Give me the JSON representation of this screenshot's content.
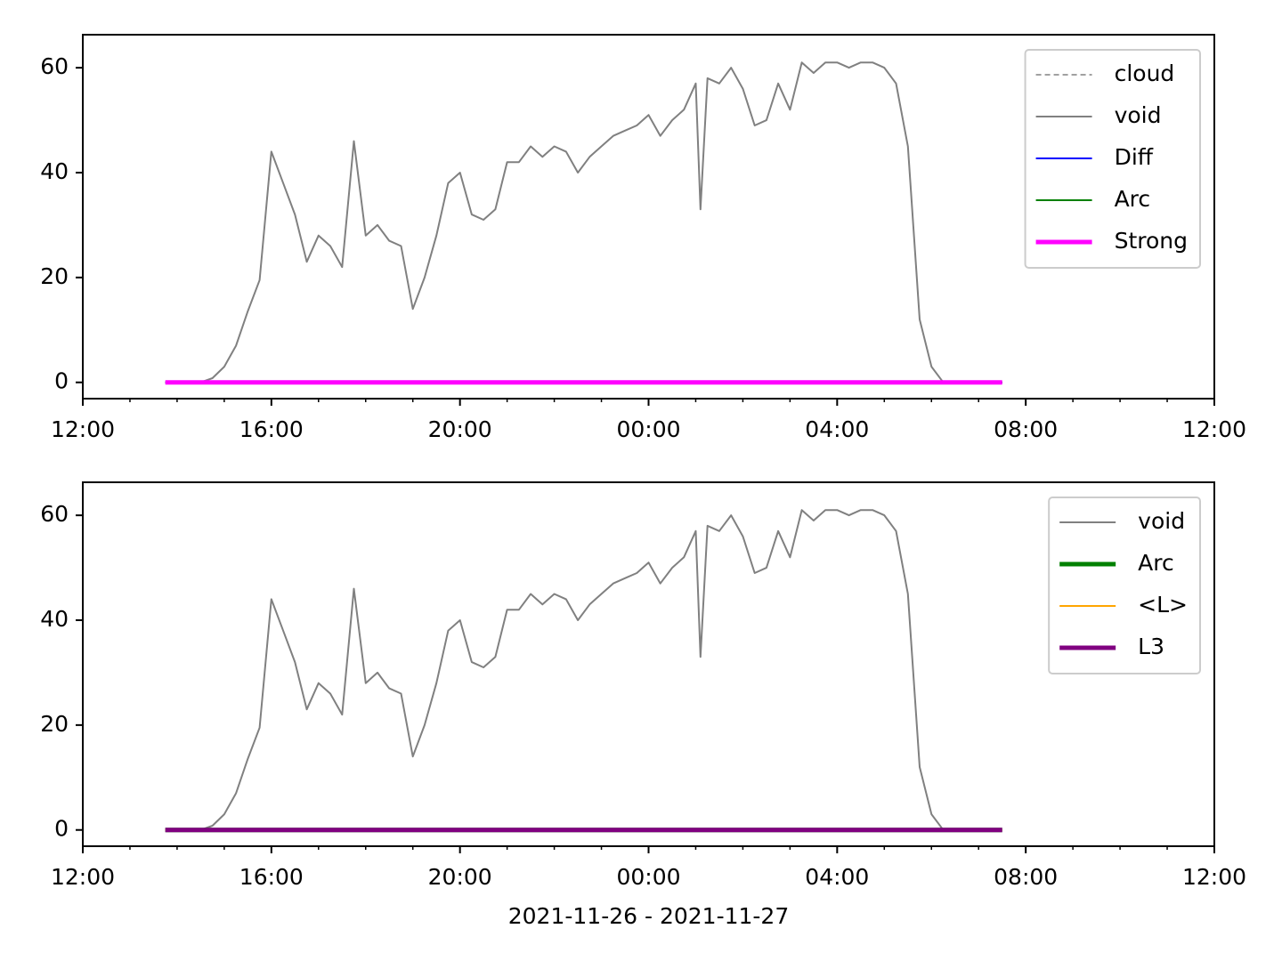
{
  "chart_data": [
    {
      "type": "line",
      "legend": "upper right",
      "xlim": [
        12,
        36
      ],
      "ylim": [
        -3.1,
        66.3
      ],
      "xticks": [
        {
          "value": 12,
          "label": "12:00"
        },
        {
          "value": 16,
          "label": "16:00"
        },
        {
          "value": 20,
          "label": "20:00"
        },
        {
          "value": 24,
          "label": "00:00"
        },
        {
          "value": 28,
          "label": "04:00"
        },
        {
          "value": 32,
          "label": "08:00"
        },
        {
          "value": 36,
          "label": "12:00"
        }
      ],
      "xminorticks": [
        13,
        14,
        15,
        17,
        18,
        19,
        21,
        22,
        23,
        25,
        26,
        27,
        29,
        30,
        31,
        33,
        34,
        35
      ],
      "yticks": [
        0,
        20,
        40,
        60
      ],
      "series": [
        {
          "name": "cloud",
          "color": "#808080",
          "linewidth": 1.5,
          "dashed": true,
          "x": [
            13.75,
            31.5
          ],
          "values": [
            0,
            0
          ]
        },
        {
          "name": "void",
          "color": "#808080",
          "linewidth": 2,
          "dashed": false,
          "x": [
            13.75,
            14,
            14.25,
            14.5,
            14.75,
            15,
            15.25,
            15.5,
            15.75,
            16,
            16.25,
            16.5,
            16.75,
            17,
            17.25,
            17.5,
            17.75,
            18,
            18.25,
            18.5,
            18.75,
            19,
            19.25,
            19.5,
            19.75,
            20,
            20.25,
            20.5,
            20.75,
            21,
            21.25,
            21.5,
            21.75,
            22,
            22.25,
            22.5,
            22.75,
            23,
            23.25,
            23.5,
            23.75,
            24,
            24.25,
            24.5,
            24.75,
            25,
            25.1,
            25.25,
            25.5,
            25.75,
            26,
            26.25,
            26.5,
            26.75,
            27,
            27.25,
            27.5,
            27.75,
            28,
            28.25,
            28.5,
            28.75,
            29,
            29.25,
            29.5,
            29.75,
            30,
            30.25,
            30.5,
            30.75,
            31,
            31.25,
            31.5
          ],
          "values": [
            0,
            0,
            0,
            0,
            0.8,
            3,
            7,
            13.6,
            19.5,
            44,
            38,
            32,
            23,
            28,
            26,
            22,
            46,
            28,
            30,
            27,
            26,
            14,
            20,
            28,
            38,
            40,
            32,
            31,
            33,
            42,
            42,
            45,
            43,
            45,
            44,
            40,
            43,
            45,
            47,
            48,
            49,
            51,
            47,
            50,
            52,
            57,
            33,
            58,
            57,
            60,
            56,
            49,
            50,
            57,
            52,
            61,
            59,
            61,
            61,
            60,
            61,
            61,
            60,
            57,
            45,
            12,
            3,
            0,
            0,
            0,
            0,
            0,
            0
          ]
        },
        {
          "name": "Diff",
          "color": "#0000ff",
          "linewidth": 2,
          "dashed": false,
          "x": [
            13.75,
            31.5
          ],
          "values": [
            0,
            0
          ]
        },
        {
          "name": "Arc",
          "color": "#008000",
          "linewidth": 2,
          "dashed": false,
          "x": [
            13.75,
            31.5
          ],
          "values": [
            0,
            0
          ]
        },
        {
          "name": "Strong",
          "color": "#ff00ff",
          "linewidth": 5,
          "dashed": false,
          "x": [
            13.75,
            31.5
          ],
          "values": [
            0,
            0
          ]
        }
      ]
    },
    {
      "type": "line",
      "legend": "upper right",
      "xlabel": "2021-11-26 - 2021-11-27",
      "xlim": [
        12,
        36
      ],
      "ylim": [
        -3.1,
        66.3
      ],
      "xticks": [
        {
          "value": 12,
          "label": "12:00"
        },
        {
          "value": 16,
          "label": "16:00"
        },
        {
          "value": 20,
          "label": "20:00"
        },
        {
          "value": 24,
          "label": "00:00"
        },
        {
          "value": 28,
          "label": "04:00"
        },
        {
          "value": 32,
          "label": "08:00"
        },
        {
          "value": 36,
          "label": "12:00"
        }
      ],
      "xminorticks": [
        13,
        14,
        15,
        17,
        18,
        19,
        21,
        22,
        23,
        25,
        26,
        27,
        29,
        30,
        31,
        33,
        34,
        35
      ],
      "yticks": [
        0,
        20,
        40,
        60
      ],
      "series": [
        {
          "name": "void",
          "color": "#808080",
          "linewidth": 2,
          "dashed": false,
          "x": [
            13.75,
            14,
            14.25,
            14.5,
            14.75,
            15,
            15.25,
            15.5,
            15.75,
            16,
            16.25,
            16.5,
            16.75,
            17,
            17.25,
            17.5,
            17.75,
            18,
            18.25,
            18.5,
            18.75,
            19,
            19.25,
            19.5,
            19.75,
            20,
            20.25,
            20.5,
            20.75,
            21,
            21.25,
            21.5,
            21.75,
            22,
            22.25,
            22.5,
            22.75,
            23,
            23.25,
            23.5,
            23.75,
            24,
            24.25,
            24.5,
            24.75,
            25,
            25.1,
            25.25,
            25.5,
            25.75,
            26,
            26.25,
            26.5,
            26.75,
            27,
            27.25,
            27.5,
            27.75,
            28,
            28.25,
            28.5,
            28.75,
            29,
            29.25,
            29.5,
            29.75,
            30,
            30.25,
            30.5,
            30.75,
            31,
            31.25,
            31.5
          ],
          "values": [
            0,
            0,
            0,
            0,
            0.8,
            3,
            7,
            13.6,
            19.5,
            44,
            38,
            32,
            23,
            28,
            26,
            22,
            46,
            28,
            30,
            27,
            26,
            14,
            20,
            28,
            38,
            40,
            32,
            31,
            33,
            42,
            42,
            45,
            43,
            45,
            44,
            40,
            43,
            45,
            47,
            48,
            49,
            51,
            47,
            50,
            52,
            57,
            33,
            58,
            57,
            60,
            56,
            49,
            50,
            57,
            52,
            61,
            59,
            61,
            61,
            60,
            61,
            61,
            60,
            57,
            45,
            12,
            3,
            0,
            0,
            0,
            0,
            0,
            0
          ]
        },
        {
          "name": "Arc",
          "color": "#008000",
          "linewidth": 5,
          "dashed": false,
          "x": [
            13.75,
            31.5
          ],
          "values": [
            0,
            0
          ]
        },
        {
          "name": "<L>",
          "color": "#ffa500",
          "linewidth": 2,
          "dashed": false,
          "x": [
            13.75,
            31.5
          ],
          "values": [
            0,
            0
          ]
        },
        {
          "name": "L3",
          "color": "#800080",
          "linewidth": 5,
          "dashed": false,
          "x": [
            13.75,
            31.5
          ],
          "values": [
            0,
            0
          ]
        }
      ]
    }
  ]
}
